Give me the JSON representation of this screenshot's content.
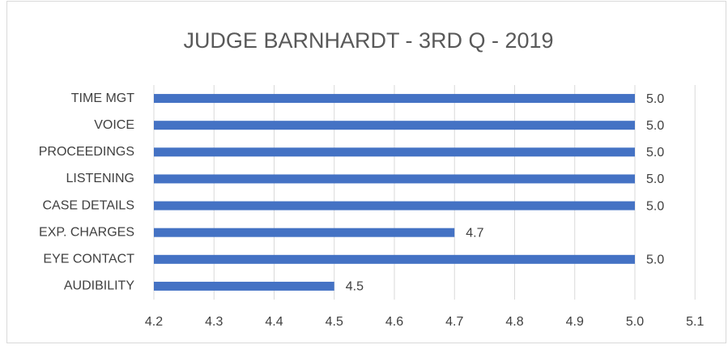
{
  "chart_data": {
    "type": "bar",
    "orientation": "horizontal",
    "title": "JUDGE BARNHARDT - 3RD Q - 2019",
    "categories": [
      "TIME MGT",
      "VOICE",
      "PROCEEDINGS",
      "LISTENING",
      "CASE DETAILS",
      "EXP. CHARGES",
      "EYE CONTACT",
      "AUDIBILITY"
    ],
    "values": [
      5,
      5,
      5,
      5,
      5,
      4.7,
      5,
      4.5
    ],
    "value_labels": [
      "5.0",
      "5.0",
      "5.0",
      "5.0",
      "5.0",
      "4.7",
      "5.0",
      "4.5"
    ],
    "color": "#4472c4",
    "xlim": [
      4.2,
      5.1
    ],
    "xticks": [
      4.2,
      4.3,
      4.4,
      4.5,
      4.6,
      4.7,
      4.8,
      4.9,
      {
        "value": 5,
        "label": "5.0"
      },
      5.1
    ],
    "grid": true
  }
}
